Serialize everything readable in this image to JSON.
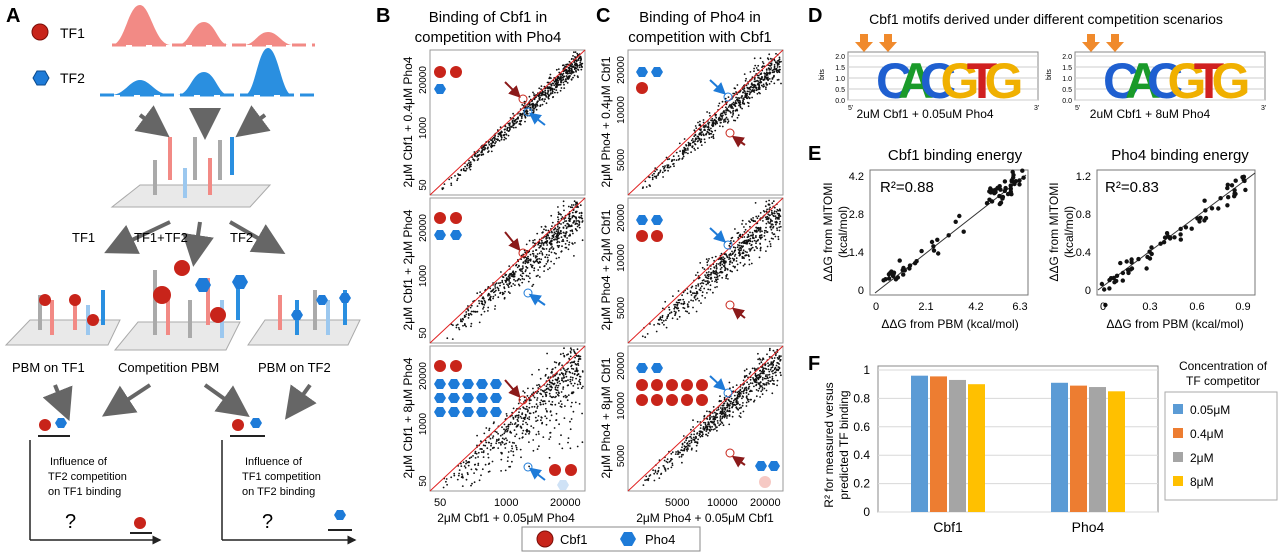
{
  "panels": {
    "A": {
      "letter": "A",
      "tf1": "TF1",
      "tf2": "TF2",
      "branch_tf1": "TF1",
      "branch_both": "TF1+TF2",
      "branch_tf2": "TF2",
      "pbm_tf1": "PBM on TF1",
      "pbm_comp": "Competition PBM",
      "pbm_tf2": "PBM on TF2",
      "infl_left": [
        "Influence of",
        "TF2 competition",
        "on TF1 binding"
      ],
      "infl_right": [
        "Influence of",
        "TF1 competition",
        "on TF2 binding"
      ],
      "question": "?"
    },
    "B": {
      "letter": "B",
      "title": [
        "Binding of Cbf1 in",
        "competition with Pho4"
      ],
      "ylabels": [
        "2μM Cbf1 + 0.4μM Pho4",
        "2μM Cbf1 + 2μM Pho4",
        "2μM Cbf1 + 8μM Pho4"
      ],
      "xlabel": "2μM Cbf1 + 0.05μM Pho4",
      "yticks": [
        "20000",
        "1000",
        "50"
      ],
      "xticks": [
        "50",
        "1000",
        "20000"
      ]
    },
    "C": {
      "letter": "C",
      "title": [
        "Binding of Pho4 in",
        "competition with Cbf1"
      ],
      "ylabels": [
        "2μM Pho4 + 0.4μM Cbf1",
        "2μM Pho4 + 2μM Cbf1",
        "2μM Pho4 + 8μM Cbf1"
      ],
      "xlabel": "2μM Pho4 + 0.05μM Cbf1",
      "yticks": [
        "20000",
        "10000",
        "5000"
      ],
      "xticks": [
        "5000",
        "10000",
        "20000"
      ]
    },
    "legend": {
      "cbf1": "Cbf1",
      "pho4": "Pho4"
    },
    "D": {
      "letter": "D",
      "title": "Cbf1 motifs derived under different competition scenarios",
      "bits": "bits",
      "logo_letters": "CACGTG",
      "logo1_label": "2uM Cbf1 + 0.05uM Pho4",
      "logo2_label": "2uM Cbf1 + 8uM Pho4",
      "yticks": [
        "2.0",
        "1.5",
        "1.0",
        "0.5",
        "0.0"
      ],
      "five": "5'",
      "three": "3'"
    },
    "E": {
      "letter": "E",
      "plot1": {
        "title": "Cbf1 binding energy",
        "r2": "R²=0.88",
        "yticks": [
          "4.2",
          "2.8",
          "1.4",
          "0"
        ],
        "xticks": [
          "0",
          "2.1",
          "4.2",
          "6.3"
        ]
      },
      "plot2": {
        "title": "Pho4 binding energy",
        "r2": "R²=0.83",
        "yticks": [
          "1.2",
          "0.8",
          "0.4",
          "0"
        ],
        "xticks": [
          "0",
          "0.3",
          "0.6",
          "0.9"
        ]
      },
      "ylabel": [
        "ΔΔG from MITOMI",
        "(kcal/mol)"
      ],
      "xlabel": "ΔΔG from PBM (kcal/mol)"
    },
    "F": {
      "letter": "F",
      "ylabel": [
        "R² for measured versus",
        "predicted TF binding"
      ],
      "yticks": [
        "1",
        "0.8",
        "0.6",
        "0.4",
        "0.2",
        "0"
      ],
      "legend_title": [
        "Concentration of",
        "TF competitor"
      ]
    }
  },
  "chart_data": {
    "type": "bar",
    "categories": [
      "Cbf1",
      "Pho4"
    ],
    "ylim": [
      0,
      1
    ],
    "series": [
      {
        "name": "0.05μM",
        "color": "#5B9BD5",
        "values": [
          0.96,
          0.91
        ]
      },
      {
        "name": "0.4μM",
        "color": "#ED7D31",
        "values": [
          0.955,
          0.89
        ]
      },
      {
        "name": "2μM",
        "color": "#A5A5A5",
        "values": [
          0.93,
          0.88
        ]
      },
      {
        "name": "8μM",
        "color": "#FFC000",
        "values": [
          0.9,
          0.85
        ]
      }
    ]
  }
}
